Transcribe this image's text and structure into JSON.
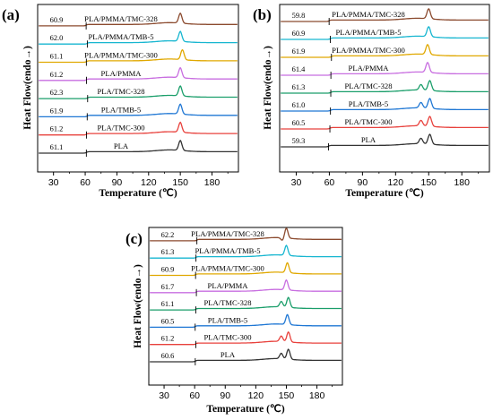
{
  "colors": [
    "#333333",
    "#e8413c",
    "#1f77d4",
    "#1a9e6a",
    "#c86ee0",
    "#e0a800",
    "#17b6d0",
    "#8b4a2e"
  ],
  "chart_data": [
    {
      "type": "line",
      "panel": "(a)",
      "xlabel": "Temperature (℃)",
      "ylabel": "Heat Flow(endo→)",
      "xlim": [
        15,
        205
      ],
      "xticks": [
        30,
        60,
        90,
        120,
        150,
        180
      ],
      "series": [
        {
          "name": "PLA",
          "tg": "61.1",
          "tg_value": 61.1,
          "peaks": [
            150
          ],
          "cold": false
        },
        {
          "name": "PLA/TMC-300",
          "tg": "61.2",
          "tg_value": 61.2,
          "peaks": [
            150
          ],
          "cold": false
        },
        {
          "name": "PLA/TMB-5",
          "tg": "61.9",
          "tg_value": 61.9,
          "peaks": [
            150
          ],
          "cold": false
        },
        {
          "name": "PLA/TMC-328",
          "tg": "62.3",
          "tg_value": 62.3,
          "peaks": [
            150
          ],
          "cold": false
        },
        {
          "name": "PLA/PMMA",
          "tg": "61.2",
          "tg_value": 61.2,
          "peaks": [
            150
          ],
          "cold": false
        },
        {
          "name": "PLA/PMMA/TMC-300",
          "tg": "61.1",
          "tg_value": 61.1,
          "peaks": [
            152
          ],
          "cold": false
        },
        {
          "name": "PLA/PMMA/TMB-5",
          "tg": "62.0",
          "tg_value": 62.0,
          "peaks": [
            150
          ],
          "cold": false
        },
        {
          "name": "PLA/PMMA/TMC-328",
          "tg": "60.9",
          "tg_value": 60.9,
          "peaks": [
            150
          ],
          "cold": false
        }
      ]
    },
    {
      "type": "line",
      "panel": "(b)",
      "xlabel": "Temperature (℃)",
      "ylabel": "Heat Flow(endo→)",
      "xlim": [
        15,
        205
      ],
      "xticks": [
        30,
        60,
        90,
        120,
        150,
        180
      ],
      "series": [
        {
          "name": "PLA",
          "tg": "59.3",
          "tg_value": 59.3,
          "peaks": [
            143,
            151
          ],
          "cold": false
        },
        {
          "name": "PLA/TMC-300",
          "tg": "60.5",
          "tg_value": 60.5,
          "peaks": [
            143,
            151
          ],
          "cold": false
        },
        {
          "name": "PLA/TMB-5",
          "tg": "61.0",
          "tg_value": 61.0,
          "peaks": [
            143,
            151
          ],
          "cold": false
        },
        {
          "name": "PLA/TMC-328",
          "tg": "61.3",
          "tg_value": 61.3,
          "peaks": [
            143,
            151
          ],
          "cold": false
        },
        {
          "name": "PLA/PMMA",
          "tg": "61.4",
          "tg_value": 61.4,
          "peaks": [
            149
          ],
          "cold": false
        },
        {
          "name": "PLA/PMMA/TMC-300",
          "tg": "61.9",
          "tg_value": 61.9,
          "peaks": [
            149
          ],
          "cold": false
        },
        {
          "name": "PLA/PMMA/TMB-5",
          "tg": "60.9",
          "tg_value": 60.9,
          "peaks": [
            150
          ],
          "cold": false
        },
        {
          "name": "PLA/PMMA/TMC-328",
          "tg": "59.8",
          "tg_value": 59.8,
          "peaks": [
            150
          ],
          "cold": false
        }
      ]
    },
    {
      "type": "line",
      "panel": "(c)",
      "xlabel": "Temperature (℃)",
      "ylabel": "Heat Flow(endo→)",
      "xlim": [
        15,
        205
      ],
      "xticks": [
        30,
        60,
        90,
        120,
        150,
        180
      ],
      "series": [
        {
          "name": "PLA",
          "tg": "60.6",
          "tg_value": 60.6,
          "peaks": [
            145,
            152
          ],
          "cold": false
        },
        {
          "name": "PLA/TMC-300",
          "tg": "61.2",
          "tg_value": 61.2,
          "peaks": [
            145,
            152
          ],
          "cold": false
        },
        {
          "name": "PLA/TMB-5",
          "tg": "60.5",
          "tg_value": 60.5,
          "peaks": [
            151
          ],
          "cold": false
        },
        {
          "name": "PLA/TMC-328",
          "tg": "61.1",
          "tg_value": 61.1,
          "peaks": [
            145,
            152
          ],
          "cold": false
        },
        {
          "name": "PLA/PMMA",
          "tg": "61.7",
          "tg_value": 61.7,
          "peaks": [
            150
          ],
          "cold": false
        },
        {
          "name": "PLA/PMMA/TMC-300",
          "tg": "60.9",
          "tg_value": 60.9,
          "peaks": [
            151
          ],
          "cold": false
        },
        {
          "name": "PLA/PMMA/TMB-5",
          "tg": "61.3",
          "tg_value": 61.3,
          "peaks": [
            150
          ],
          "cold": false
        },
        {
          "name": "PLA/PMMA/TMC-328",
          "tg": "62.2",
          "tg_value": 62.2,
          "peaks": [
            150
          ],
          "cold": true
        }
      ]
    }
  ]
}
